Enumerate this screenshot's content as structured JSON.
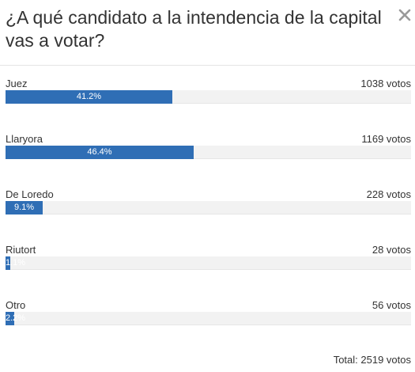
{
  "poll": {
    "title": "¿A qué candidato a la intendencia de la capital vas a votar?",
    "close_icon": "close-icon",
    "accent_color": "#2f6eb5",
    "options": [
      {
        "label": "Juez",
        "votes": "1038 votos",
        "percent_label": "41.2%",
        "percent": 41.2
      },
      {
        "label": "Llaryora",
        "votes": "1169 votos",
        "percent_label": "46.4%",
        "percent": 46.4
      },
      {
        "label": "De Loredo",
        "votes": "228 votos",
        "percent_label": "9.1%",
        "percent": 9.1
      },
      {
        "label": "Riutort",
        "votes": "28 votos",
        "percent_label": "1.1%",
        "percent": 1.1
      },
      {
        "label": "Otro",
        "votes": "56 votos",
        "percent_label": "2.2%",
        "percent": 2.2
      }
    ],
    "total_label": "Total:",
    "total_value": "2519 votos"
  }
}
